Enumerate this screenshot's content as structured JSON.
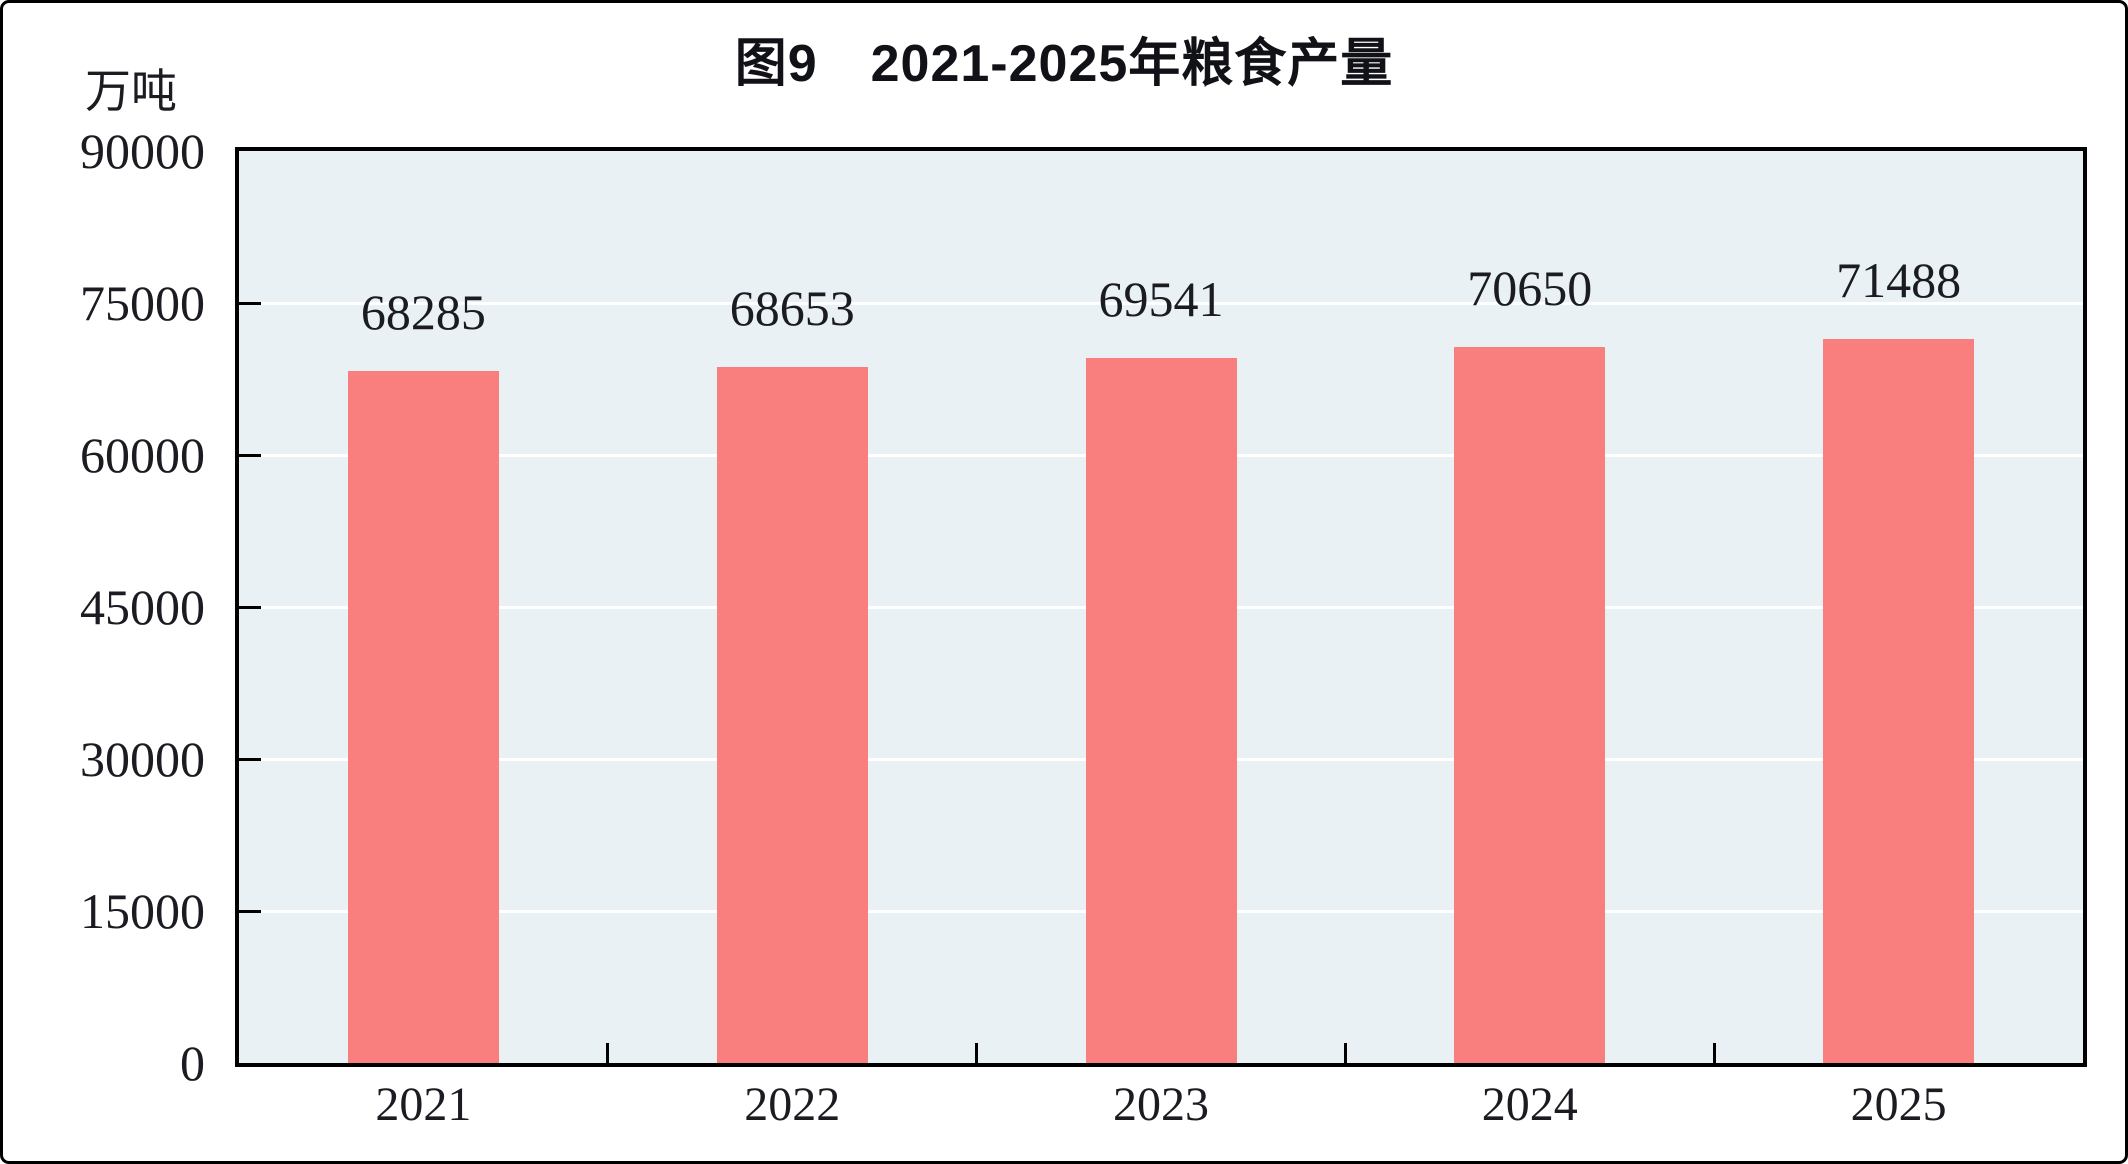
{
  "title": "图9　2021-2025年粮食产量",
  "unit_label": "万吨",
  "colors": {
    "bar": "#F97F7F",
    "plot_bg": "#EAF1F5",
    "gridline": "#FFFFFF",
    "axis": "#000000",
    "text": "#1B1B22"
  },
  "chart_data": {
    "type": "bar",
    "title": "图9　2021-2025年粮食产量",
    "categories": [
      "2021",
      "2022",
      "2023",
      "2024",
      "2025"
    ],
    "values": [
      68285,
      68653,
      69541,
      70650,
      71488
    ],
    "value_labels": [
      "68285",
      "68653",
      "69541",
      "70650",
      "71488"
    ],
    "xlabel": "",
    "ylabel": "万吨",
    "ylim": [
      0,
      90000
    ],
    "yticks": [
      0,
      15000,
      30000,
      45000,
      60000,
      75000,
      90000
    ],
    "grid": "horizontal",
    "legend_position": "none",
    "bar_width_fraction": 0.41
  }
}
